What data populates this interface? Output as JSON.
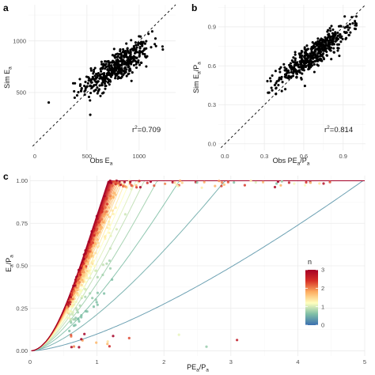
{
  "chart_data": [
    {
      "panel": "a",
      "type": "scatter",
      "xlabel_main": "Obs E",
      "xlabel_sub": "a",
      "ylabel_main": "Sim E",
      "ylabel_sub": "a",
      "xlim": [
        -60,
        1350
      ],
      "ylim": [
        -60,
        1350
      ],
      "xticks": [
        0,
        500,
        1000
      ],
      "yticks": [
        500,
        1000
      ],
      "reference_line": "1:1 dashed",
      "annotation": {
        "prefix": "r",
        "sup": "2",
        "value": "=0.709"
      },
      "points": {
        "n": 460,
        "x_range": [
          80,
          1230
        ],
        "y_range": [
          180,
          1190
        ],
        "r": 0.709
      }
    },
    {
      "panel": "b",
      "type": "scatter",
      "xlabel_main": "Obs PE",
      "xlabel_sub": "a",
      "xlabel_tail": "/P",
      "xlabel_sub2": "a",
      "ylabel_main": "Sim E",
      "ylabel_sub": "a",
      "ylabel_tail": "/P",
      "ylabel_sub2": "a",
      "xlim": [
        -0.05,
        1.07
      ],
      "ylim": [
        -0.05,
        1.07
      ],
      "xticks": [
        0.0,
        0.3,
        0.6,
        0.9
      ],
      "yticks": [
        0.0,
        0.3,
        0.6,
        0.9
      ],
      "reference_line": "1:1 dashed",
      "annotation": {
        "prefix": "r",
        "sup": "2",
        "value": "=0.814"
      },
      "points": {
        "n": 470,
        "x_range": [
          0.0,
          1.0
        ],
        "y_range": [
          0.2,
          0.98
        ],
        "r": 0.814
      }
    },
    {
      "panel": "c",
      "type": "line",
      "xlabel_main": "PE",
      "xlabel_sub": "a",
      "xlabel_tail": "/P",
      "xlabel_sub2": "a",
      "ylabel_main": "E",
      "ylabel_sub": "a",
      "ylabel_tail": "/P",
      "ylabel_sub2": "a",
      "xlim": [
        0,
        5
      ],
      "ylim": [
        -0.03,
        1.03
      ],
      "xticks": [
        0,
        1,
        2,
        3,
        4,
        5
      ],
      "yticks": [
        0.0,
        0.25,
        0.5,
        0.75,
        1.0
      ],
      "curve_family": "Budyko-type curves, E/P = x * (1 + x^-n)^(-1/n) capped at 1",
      "n_values": [
        0.3,
        0.45,
        0.6,
        0.75,
        0.9,
        1.05,
        1.2,
        1.35,
        1.5,
        1.6,
        1.7,
        1.8,
        1.9,
        2.0,
        2.1,
        2.2,
        2.3,
        2.4,
        2.5,
        2.6,
        2.7,
        2.8,
        2.9,
        3.0,
        3.1
      ],
      "legend": {
        "title": "n",
        "min": 0,
        "max": 3,
        "ticks": [
          0,
          1,
          2,
          3
        ],
        "colors": [
          "#3b6fb0",
          "#7fbfa6",
          "#ffffbf",
          "#fdae61",
          "#d73027",
          "#a50026"
        ],
        "placement": "right"
      },
      "points": {
        "n": 420,
        "x_range": [
          0.2,
          4.8
        ],
        "y_range": [
          0.0,
          1.0
        ]
      }
    }
  ]
}
